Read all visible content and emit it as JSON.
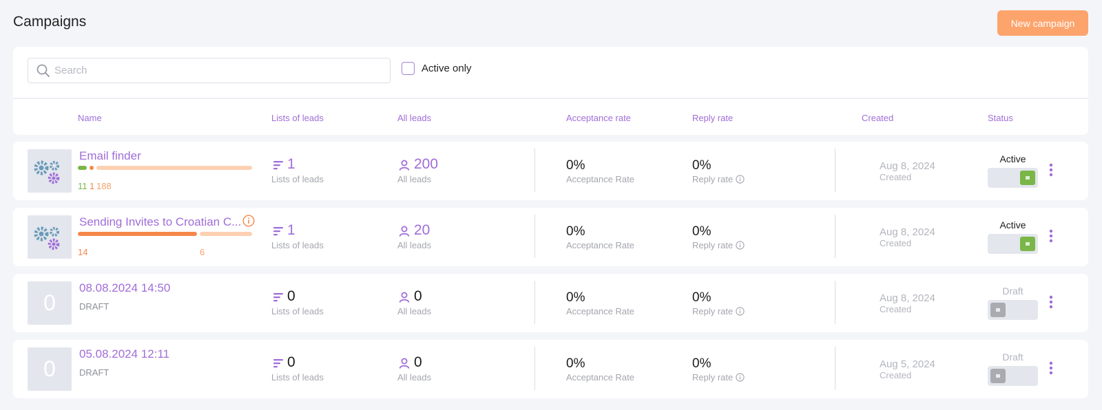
{
  "header": {
    "title": "Campaigns",
    "new_campaign_label": "New campaign"
  },
  "toolbar": {
    "search_placeholder": "Search",
    "search_value": "",
    "active_only_label": "Active only",
    "active_only_checked": false
  },
  "columns": {
    "name": "Name",
    "lists": "Lists of leads",
    "all_leads": "All leads",
    "acceptance": "Acceptance rate",
    "reply": "Reply rate",
    "created": "Created",
    "status": "Status"
  },
  "colors": {
    "accent": "#a06dd8",
    "button": "#fda46c",
    "bar_green": "#7ab648",
    "bar_orange": "#f5874a",
    "bar_light": "#fdd0b2",
    "toggle_on": "#7ab648",
    "toggle_off": "#a9abb1"
  },
  "campaigns": [
    {
      "name": "Email finder",
      "thumb": "gears-icon",
      "progress_counts": [
        "11",
        "1",
        "188"
      ],
      "lists_value": "1",
      "lists_sub": "Lists of leads",
      "leads_value": "200",
      "leads_sub": "All leads",
      "acceptance_value": "0%",
      "acceptance_sub": "Acceptance Rate",
      "reply_value": "0%",
      "reply_sub": "Reply rate",
      "created_value": "Aug 8, 2024",
      "created_sub": "Created",
      "status": "Active",
      "toggle_on": true
    },
    {
      "name": "Sending Invites to Croatian C...",
      "thumb": "gears-icon",
      "progress_counts": [
        "14",
        "6"
      ],
      "lists_value": "1",
      "lists_sub": "Lists of leads",
      "leads_value": "20",
      "leads_sub": "All leads",
      "acceptance_value": "0%",
      "acceptance_sub": "Acceptance Rate",
      "reply_value": "0%",
      "reply_sub": "Reply rate",
      "created_value": "Aug 8, 2024",
      "created_sub": "Created",
      "status": "Active",
      "toggle_on": true
    },
    {
      "name": "08.08.2024 14:50",
      "thumb_text": "0",
      "draft_label": "DRAFT",
      "lists_value": "0",
      "lists_sub": "Lists of leads",
      "leads_value": "0",
      "leads_sub": "All leads",
      "acceptance_value": "0%",
      "acceptance_sub": "Acceptance Rate",
      "reply_value": "0%",
      "reply_sub": "Reply rate",
      "created_value": "Aug 8, 2024",
      "created_sub": "Created",
      "status": "Draft",
      "toggle_on": false
    },
    {
      "name": "05.08.2024 12:11",
      "thumb_text": "0",
      "draft_label": "DRAFT",
      "lists_value": "0",
      "lists_sub": "Lists of leads",
      "leads_value": "0",
      "leads_sub": "All leads",
      "acceptance_value": "0%",
      "acceptance_sub": "Acceptance Rate",
      "reply_value": "0%",
      "reply_sub": "Reply rate",
      "created_value": "Aug 5, 2024",
      "created_sub": "Created",
      "status": "Draft",
      "toggle_on": false
    }
  ]
}
